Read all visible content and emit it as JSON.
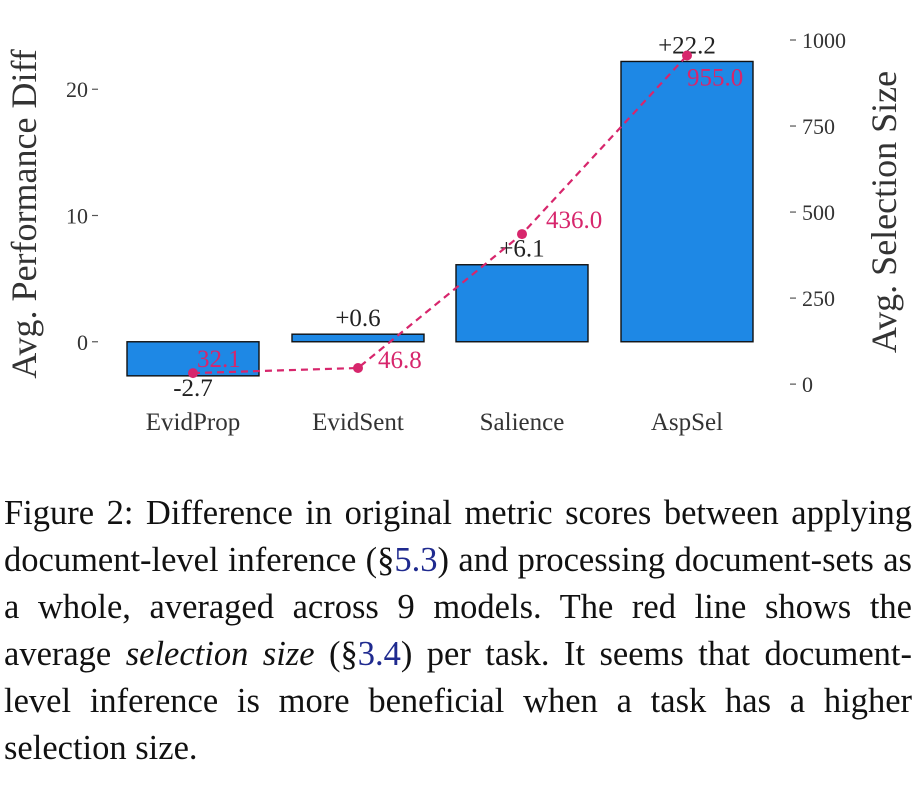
{
  "chart_data": {
    "type": "bar",
    "title": "",
    "categories": [
      "EvidProp",
      "EvidSent",
      "Salience",
      "AspSel"
    ],
    "series": [
      {
        "name": "Avg. Performance Diff",
        "axis": "left",
        "values": [
          -2.7,
          0.6,
          6.1,
          22.2
        ],
        "labels": [
          "-2.7",
          "+0.6",
          "+6.1",
          "+22.2"
        ]
      },
      {
        "name": "Avg. Selection Size",
        "axis": "right",
        "type": "line",
        "values": [
          32.1,
          46.8,
          436.0,
          955.0
        ],
        "labels": [
          "32.1",
          "46.8",
          "436.0",
          "955.0"
        ]
      }
    ],
    "ylabel": "Avg. Performance Diff",
    "ylabel_right": "Avg. Selection Size",
    "ylim": [
      -3.9,
      23.9
    ],
    "ylim_right": [
      -20,
      1000
    ],
    "yticks": [
      0,
      10,
      20
    ],
    "yticks_right": [
      0,
      250,
      500,
      750,
      1000
    ],
    "colors": {
      "bar": "#1e88e5",
      "line": "#d7266c",
      "bar_edge": "#111111"
    }
  },
  "caption": {
    "prefix": "Figure 2: Difference in original metric scores between applying document-level inference (§",
    "ref1": "5.3",
    "middle": ") and processing document-sets as a whole, averaged across 9 models. The red line shows the average ",
    "emph": "selection size",
    "middle2": " (§",
    "ref2": "3.4",
    "suffix": ") per task.  It seems that document-level inference is more beneficial when a task has a higher selection size."
  }
}
